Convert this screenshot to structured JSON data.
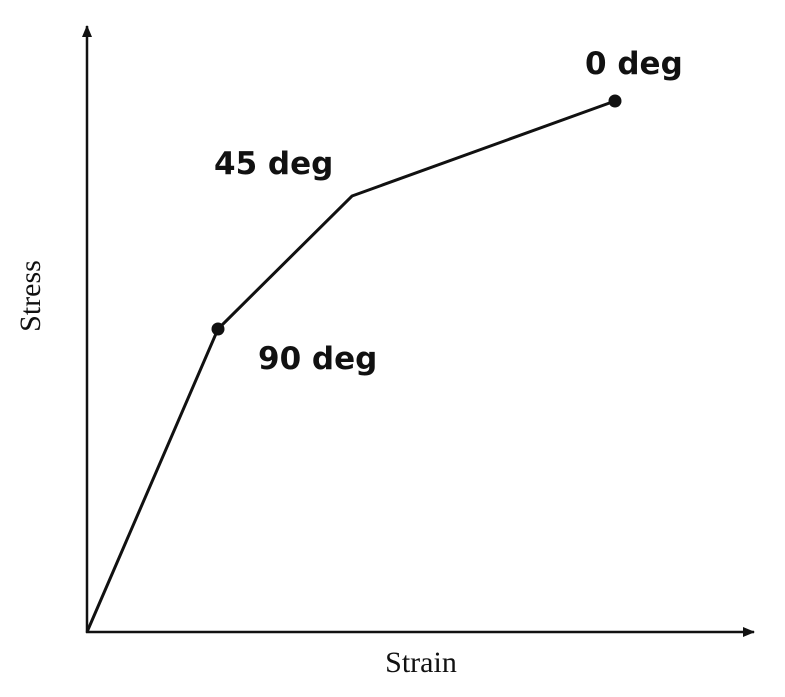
{
  "axes": {
    "x_label": "Strain",
    "y_label": "Stress"
  },
  "annotations": {
    "top": "0 deg",
    "middle": "45 deg",
    "bottom": "90 deg"
  }
}
